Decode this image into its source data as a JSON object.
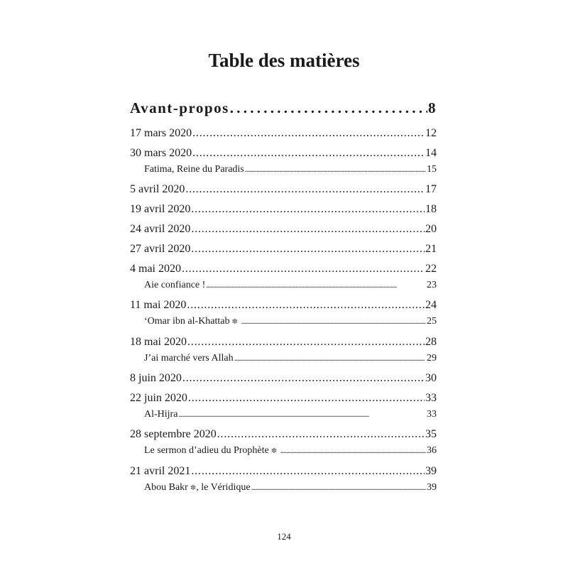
{
  "title": "Table des matières",
  "heading": {
    "label": "Avant-propos",
    "page": "8"
  },
  "entries": [
    {
      "label": "17 mars 2020",
      "page": "12",
      "level": 1
    },
    {
      "label": "30 mars 2020",
      "page": "14",
      "level": 1
    },
    {
      "label": "Fatima, Reine du Paradis",
      "page": "15",
      "level": 2
    },
    {
      "label": "5 avril 2020",
      "page": "17",
      "level": 1
    },
    {
      "label": "19 avril 2020",
      "page": "18",
      "level": 1
    },
    {
      "label": "24 avril 2020",
      "page": "20",
      "level": 1
    },
    {
      "label": "27 avril 2020",
      "page": "21",
      "level": 1
    },
    {
      "label": "4 mai 2020",
      "page": "22",
      "level": 1
    },
    {
      "label": "Aie confiance !",
      "page": "23",
      "level": 2
    },
    {
      "label": "11 mai 2020",
      "page": "24",
      "level": 1
    },
    {
      "label": "‘Omar ibn al-Khattab",
      "page": "25",
      "level": 2,
      "honorific": "radiyallahu-icon"
    },
    {
      "label": "18 mai 2020",
      "page": "28",
      "level": 1
    },
    {
      "label": "J’ai marché vers Allah",
      "page": "29",
      "level": 2
    },
    {
      "label": "8 juin 2020",
      "page": "30",
      "level": 1
    },
    {
      "label": "22 juin 2020",
      "page": "33",
      "level": 1
    },
    {
      "label": "Al-Hijra",
      "page": "33",
      "level": 2
    },
    {
      "label": "28 septembre 2020",
      "page": "35",
      "level": 1
    },
    {
      "label": "Le sermon d’adieu du Prophète",
      "page": "36",
      "level": 2,
      "honorific": "salallahu-alayhi-wasallam-icon"
    },
    {
      "label": "21 avril 2021",
      "page": "39",
      "level": 1
    },
    {
      "label": "Abou Bakr",
      "label_suffix": ", le Véridique",
      "page": "39",
      "level": 2,
      "honorific": "radiyallahu-icon"
    }
  ],
  "folio": "124"
}
